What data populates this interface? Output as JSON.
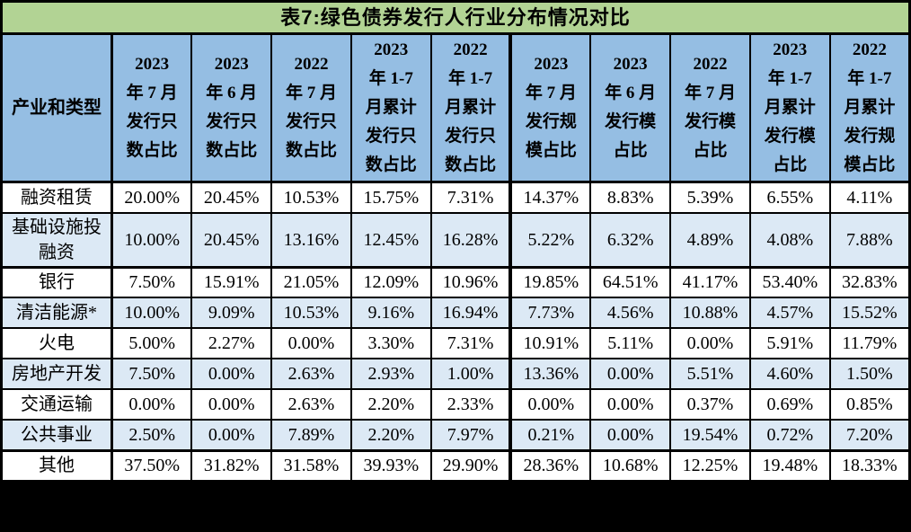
{
  "title": "表7:绿色债券发行人行业分布情况对比",
  "colors": {
    "title_bar_bg": "#b2d394",
    "header_bg": "#95bee3",
    "row_bg": "#ffffff",
    "row_alt_bg": "#dce9f5",
    "border": "#000000",
    "page_bg": "#000000",
    "text": "#000000"
  },
  "table": {
    "corner_header": "产业和类型",
    "columns": [
      "2023\n年 7 月\n发行只\n数占比",
      "2023\n年 6 月\n发行只\n数占比",
      "2022\n年 7 月\n发行只\n数占比",
      "2023\n年 1-7\n月累计\n发行只\n数占比",
      "2022\n年 1-7\n月累计\n发行只\n数占比",
      "2023\n年 7 月\n发行规\n模占比",
      "2023\n年 6 月\n发行模\n占比",
      "2022\n年 7 月\n发行模\n占比",
      "2023\n年 1-7\n月累计\n发行模\n占比",
      "2022\n年 1-7\n月累计\n发行规\n模占比"
    ],
    "rows": [
      {
        "label": "融资租赁",
        "values": [
          "20.00%",
          "20.45%",
          "10.53%",
          "15.75%",
          "7.31%",
          "14.37%",
          "8.83%",
          "5.39%",
          "6.55%",
          "4.11%"
        ]
      },
      {
        "label": "基础设施投融资",
        "values": [
          "10.00%",
          "20.45%",
          "13.16%",
          "12.45%",
          "16.28%",
          "5.22%",
          "6.32%",
          "4.89%",
          "4.08%",
          "7.88%"
        ]
      },
      {
        "label": "银行",
        "values": [
          "7.50%",
          "15.91%",
          "21.05%",
          "12.09%",
          "10.96%",
          "19.85%",
          "64.51%",
          "41.17%",
          "53.40%",
          "32.83%"
        ]
      },
      {
        "label": "清洁能源*",
        "values": [
          "10.00%",
          "9.09%",
          "10.53%",
          "9.16%",
          "16.94%",
          "7.73%",
          "4.56%",
          "10.88%",
          "4.57%",
          "15.52%"
        ]
      },
      {
        "label": "火电",
        "values": [
          "5.00%",
          "2.27%",
          "0.00%",
          "3.30%",
          "7.31%",
          "10.91%",
          "5.11%",
          "0.00%",
          "5.91%",
          "11.79%"
        ]
      },
      {
        "label": "房地产开发",
        "values": [
          "7.50%",
          "0.00%",
          "2.63%",
          "2.93%",
          "1.00%",
          "13.36%",
          "0.00%",
          "5.51%",
          "4.60%",
          "1.50%"
        ]
      },
      {
        "label": "交通运输",
        "values": [
          "0.00%",
          "0.00%",
          "2.63%",
          "2.20%",
          "2.33%",
          "0.00%",
          "0.00%",
          "0.37%",
          "0.69%",
          "0.85%"
        ]
      },
      {
        "label": "公共事业",
        "values": [
          "2.50%",
          "0.00%",
          "7.89%",
          "2.20%",
          "7.97%",
          "0.21%",
          "0.00%",
          "19.54%",
          "0.72%",
          "7.20%"
        ]
      },
      {
        "label": "其他",
        "values": [
          "37.50%",
          "31.82%",
          "31.58%",
          "39.93%",
          "29.90%",
          "28.36%",
          "10.68%",
          "12.25%",
          "19.48%",
          "18.33%"
        ]
      }
    ]
  }
}
